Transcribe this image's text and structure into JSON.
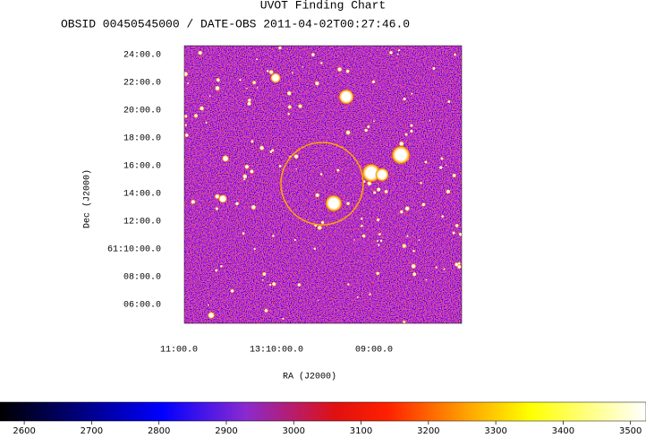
{
  "title": "UVOT Finding Chart",
  "subtitle": "OBSID 00450545000 / DATE-OBS 2011-04-02T00:27:46.0",
  "y_axis": {
    "label": "Dec (J2000)",
    "ticks": [
      "24:00.0",
      "22:00.0",
      "20:00.0",
      "18:00.0",
      "16:00.0",
      "14:00.0",
      "12:00.0",
      "61:10:00.0",
      "08:00.0",
      "06:00.0"
    ]
  },
  "x_axis": {
    "label": "RA (J2000)",
    "ticks": [
      "11:00.0",
      "13:10:00.0",
      "09:00.0"
    ]
  },
  "colorbar": {
    "range": [
      2564,
      3523
    ],
    "ticks": [
      2600,
      2700,
      2800,
      2900,
      3000,
      3100,
      3200,
      3300,
      3400,
      3500
    ]
  }
}
